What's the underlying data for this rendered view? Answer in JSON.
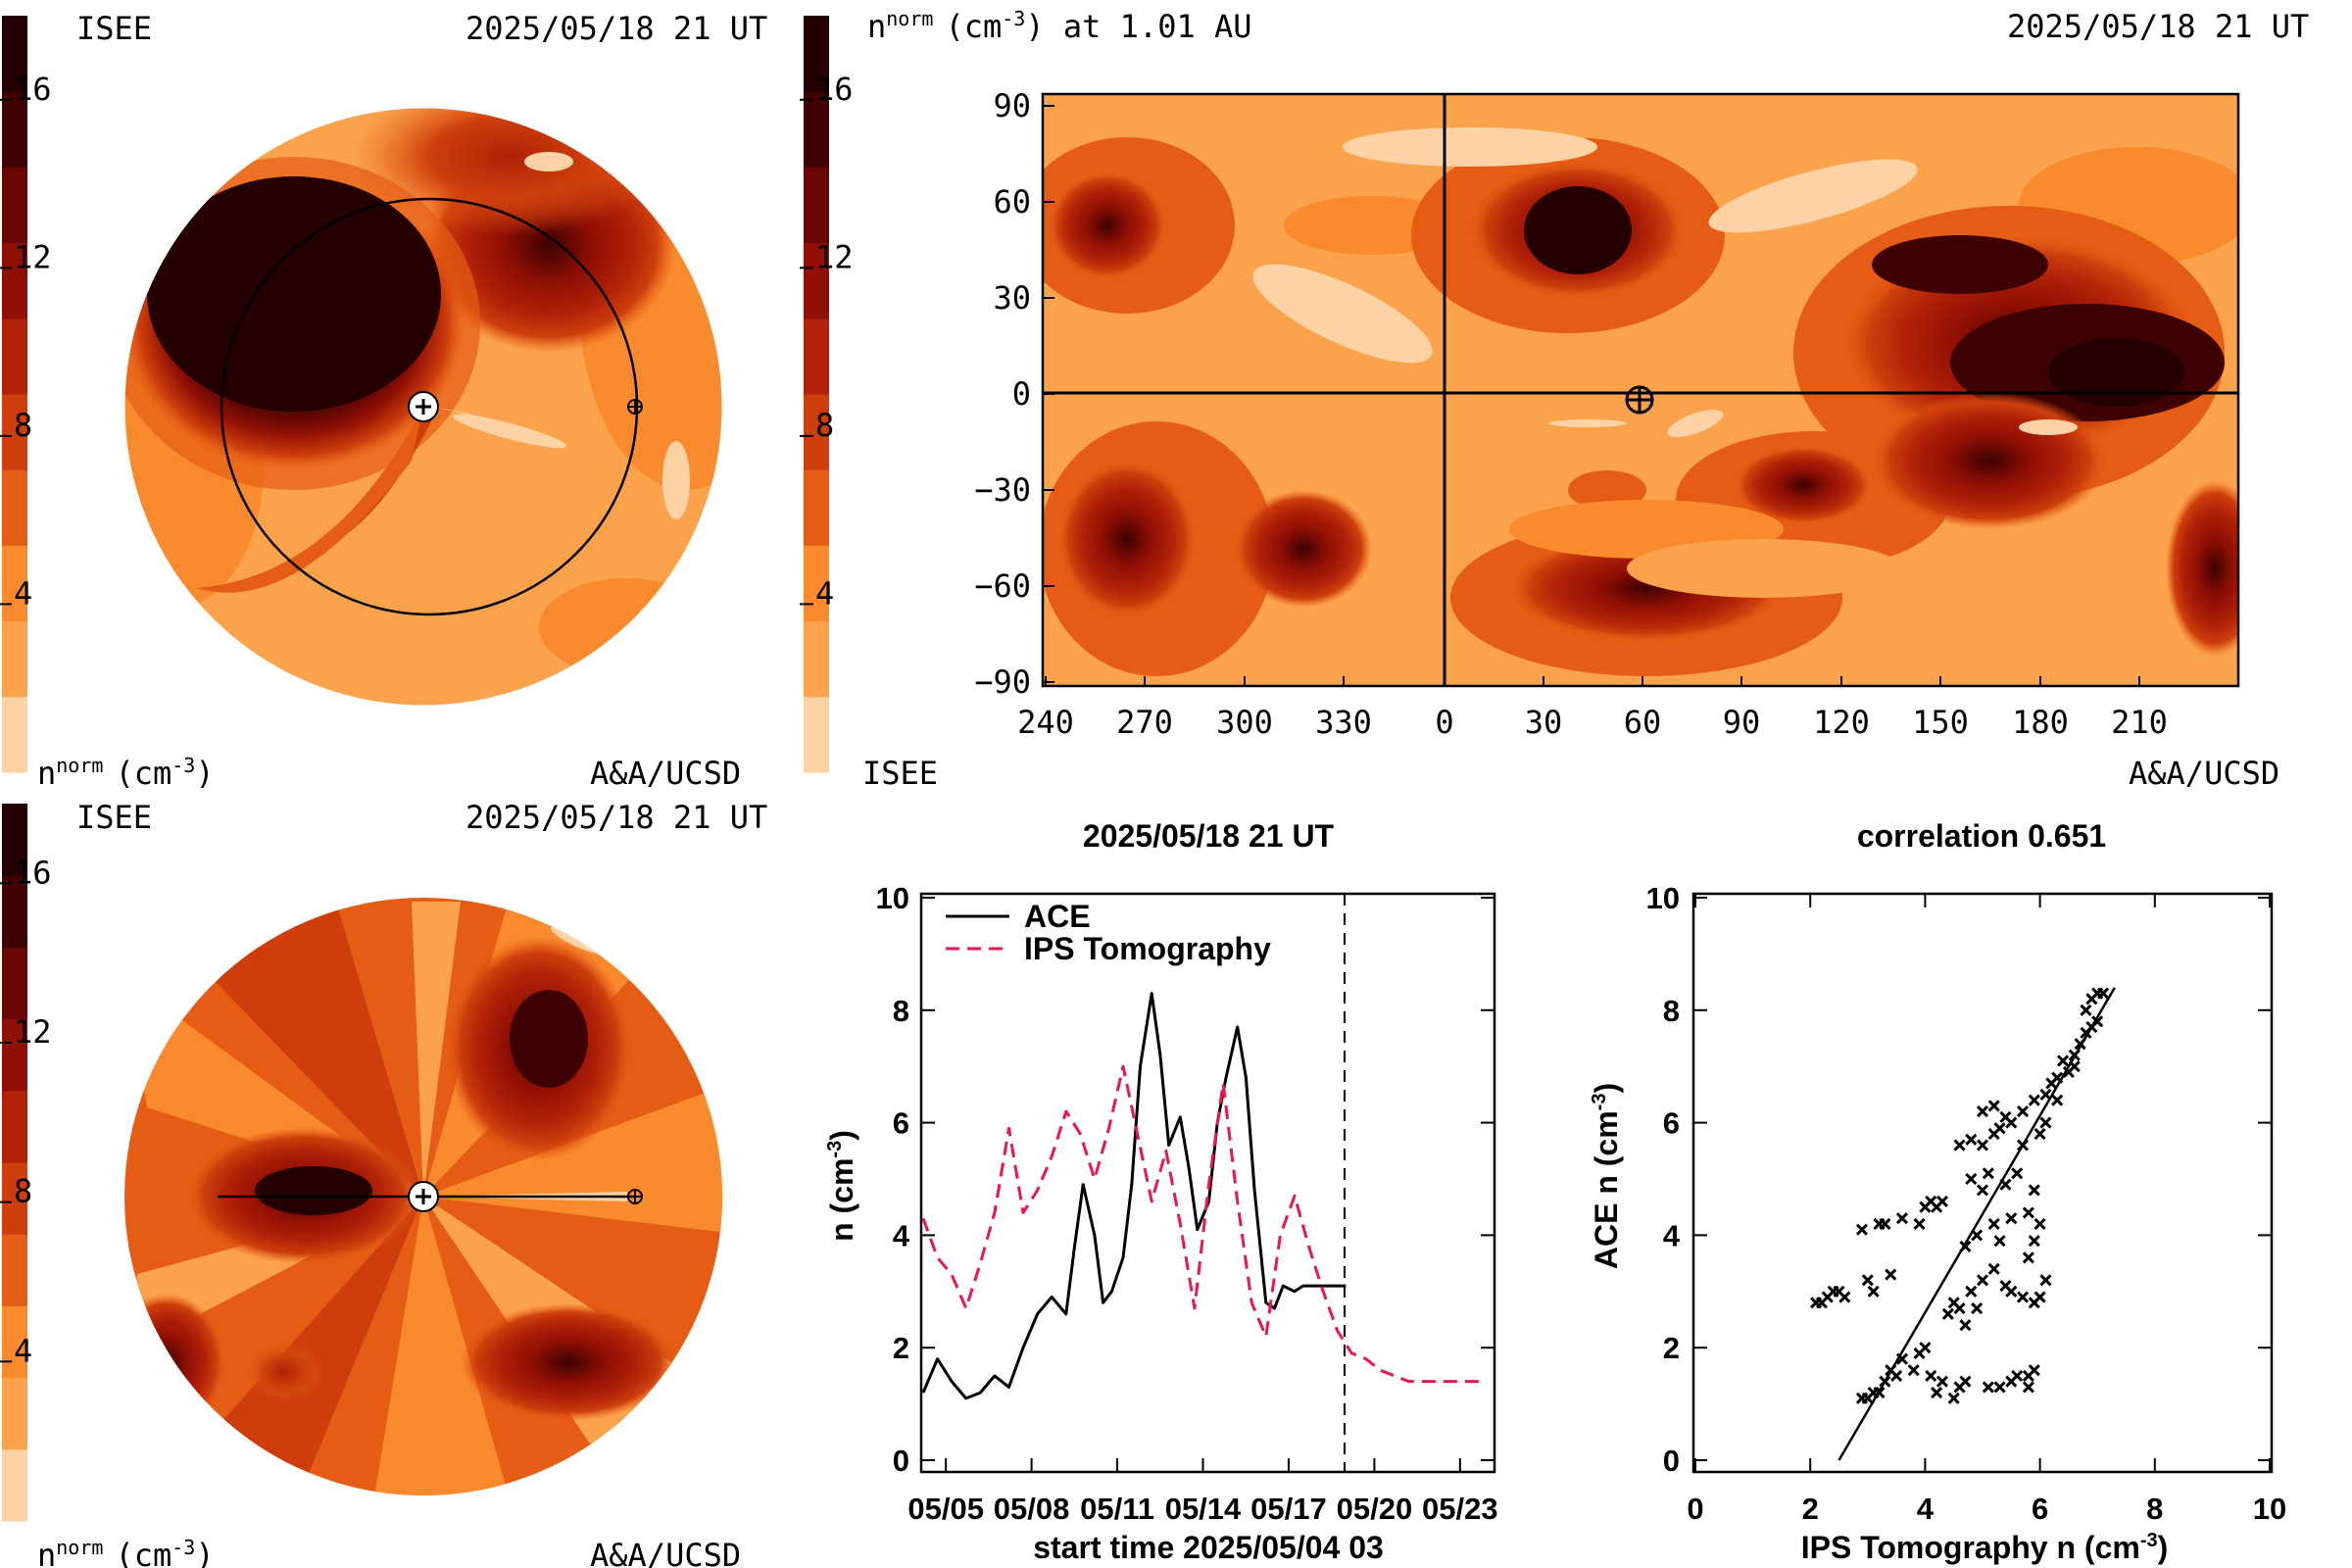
{
  "timestamp": "2025/05/18 21 UT",
  "colorbar": {
    "ticks": [
      "16",
      "12",
      "8",
      "4"
    ],
    "colors": [
      "#fdd3a5",
      "#fba24d",
      "#f98a2d",
      "#e55c14",
      "#cd3e0c",
      "#b02108",
      "#8f0f04",
      "#6a0603",
      "#3d0201",
      "#240000"
    ]
  },
  "panel_tl": {
    "source_left": "ISEE",
    "timestamp": "2025/05/18 21 UT",
    "unit_label_n": "n",
    "unit_label_sup": "norm",
    "unit_label_rest": "(cm",
    "unit_label_exp": "-3",
    "unit_label_close": ")",
    "credit": "A&A/UCSD"
  },
  "panel_tr": {
    "title_n": "n",
    "title_sup": "norm",
    "title_rest": "(cm",
    "title_exp": "-3",
    "title_tail": ") at 1.01 AU",
    "timestamp": "2025/05/18 21 UT",
    "source_left": "ISEE",
    "credit": "A&A/UCSD",
    "x_ticks": [
      "240",
      "270",
      "300",
      "330",
      "0",
      "30",
      "60",
      "90",
      "120",
      "150",
      "180",
      "210"
    ],
    "y_ticks": [
      "90",
      "60",
      "30",
      "0",
      "−30",
      "−60",
      "−90"
    ]
  },
  "panel_bl": {
    "source_left": "ISEE",
    "timestamp": "2025/05/18 21 UT",
    "unit_label_n": "n",
    "unit_label_sup": "norm",
    "unit_label_rest": "(cm",
    "unit_label_exp": "-3",
    "unit_label_close": ")",
    "credit": "A&A/UCSD"
  },
  "chart_data": [
    {
      "type": "line",
      "title": "2025/05/18 21 UT",
      "xlabel": "start time 2025/05/04 03",
      "ylabel": "n (cm",
      "ylabel_exp": "-3",
      "ylabel_close": ")",
      "ylim": [
        0,
        10
      ],
      "x_ticks": [
        "05/05",
        "05/08",
        "05/11",
        "05/14",
        "05/17",
        "05/20",
        "05/23"
      ],
      "y_ticks": [
        "0",
        "2",
        "4",
        "6",
        "8",
        "10"
      ],
      "current_time_day": 14.75,
      "series": [
        {
          "name": "ACE",
          "color": "#000000",
          "dash": "solid",
          "x": [
            0,
            0.5,
            1,
            1.5,
            2,
            2.5,
            3,
            3.5,
            4,
            4.5,
            5,
            5.3,
            5.6,
            6,
            6.3,
            6.6,
            7,
            7.3,
            7.6,
            8,
            8.3,
            8.6,
            9,
            9.3,
            9.6,
            10,
            10.3,
            10.6,
            11,
            11.3,
            11.6,
            12,
            12.3,
            12.6,
            13,
            13.3,
            13.6,
            14,
            14.3,
            14.6,
            14.8
          ],
          "y": [
            1.2,
            1.8,
            1.4,
            1.1,
            1.2,
            1.5,
            1.3,
            2.0,
            2.6,
            2.9,
            2.6,
            3.8,
            4.9,
            4.0,
            2.8,
            3.0,
            3.6,
            4.9,
            7.0,
            8.3,
            7.2,
            5.6,
            6.1,
            5.2,
            4.1,
            4.6,
            6.0,
            6.8,
            7.7,
            6.8,
            4.8,
            2.8,
            2.7,
            3.1,
            3.0,
            3.1,
            3.1,
            3.1,
            3.1,
            3.1,
            3.1
          ]
        },
        {
          "name": "IPS Tomography",
          "color": "#e8184f",
          "dash": "dashed",
          "x": [
            0,
            0.5,
            1,
            1.5,
            2,
            2.5,
            3,
            3.5,
            4,
            4.5,
            5,
            5.5,
            6,
            6.5,
            7,
            7.5,
            8,
            8.5,
            9,
            9.5,
            10,
            10.5,
            11,
            11.5,
            12,
            12.5,
            13,
            13.5,
            14,
            14.5,
            15,
            15.5,
            16,
            16.5,
            17,
            17.5,
            18,
            18.5,
            19,
            19.5
          ],
          "y": [
            4.3,
            3.6,
            3.3,
            2.7,
            3.5,
            4.4,
            5.9,
            4.4,
            4.8,
            5.4,
            6.2,
            5.8,
            5.0,
            5.9,
            7.0,
            5.8,
            4.6,
            5.5,
            4.2,
            2.7,
            4.9,
            6.7,
            4.6,
            2.8,
            2.2,
            4.0,
            4.7,
            3.8,
            3.0,
            2.3,
            1.9,
            1.8,
            1.6,
            1.5,
            1.4,
            1.4,
            1.4,
            1.4,
            1.4,
            1.4
          ]
        }
      ]
    },
    {
      "type": "scatter",
      "title": "correlation 0.651",
      "xlabel": "IPS Tomography n (cm",
      "xlabel_exp": "-3",
      "xlabel_close": ")",
      "ylabel": "ACE n (cm",
      "ylabel_exp": "-3",
      "ylabel_close": ")",
      "xlim": [
        0,
        10
      ],
      "ylim": [
        0,
        10
      ],
      "x_ticks": [
        "0",
        "2",
        "4",
        "6",
        "8",
        "10"
      ],
      "y_ticks": [
        "0",
        "2",
        "4",
        "6",
        "8",
        "10"
      ],
      "fit_line": {
        "x": [
          2.5,
          7.3
        ],
        "y": [
          0.0,
          8.4
        ]
      },
      "points": [
        [
          2.1,
          2.8
        ],
        [
          2.2,
          2.8
        ],
        [
          2.3,
          2.9
        ],
        [
          2.4,
          3.0
        ],
        [
          2.5,
          3.0
        ],
        [
          2.6,
          2.9
        ],
        [
          3.0,
          3.2
        ],
        [
          3.1,
          3.0
        ],
        [
          2.9,
          4.1
        ],
        [
          3.2,
          4.2
        ],
        [
          3.3,
          4.2
        ],
        [
          3.6,
          4.3
        ],
        [
          4.0,
          4.5
        ],
        [
          4.1,
          4.6
        ],
        [
          4.2,
          4.5
        ],
        [
          3.4,
          3.3
        ],
        [
          2.9,
          1.1
        ],
        [
          3.0,
          1.1
        ],
        [
          3.1,
          1.2
        ],
        [
          3.2,
          1.2
        ],
        [
          3.3,
          1.4
        ],
        [
          3.4,
          1.6
        ],
        [
          3.5,
          1.5
        ],
        [
          3.6,
          1.8
        ],
        [
          3.8,
          1.6
        ],
        [
          3.9,
          1.9
        ],
        [
          4.1,
          1.5
        ],
        [
          4.2,
          1.2
        ],
        [
          4.3,
          1.4
        ],
        [
          4.5,
          1.1
        ],
        [
          4.6,
          1.3
        ],
        [
          4.7,
          1.4
        ],
        [
          5.1,
          1.3
        ],
        [
          5.3,
          1.3
        ],
        [
          5.5,
          1.4
        ],
        [
          5.6,
          1.5
        ],
        [
          5.8,
          1.3
        ],
        [
          5.8,
          1.5
        ],
        [
          5.9,
          1.6
        ],
        [
          4.0,
          2.0
        ],
        [
          4.4,
          2.6
        ],
        [
          4.5,
          2.8
        ],
        [
          4.6,
          2.7
        ],
        [
          4.7,
          2.4
        ],
        [
          4.8,
          3.0
        ],
        [
          4.9,
          2.7
        ],
        [
          5.0,
          3.2
        ],
        [
          5.2,
          3.4
        ],
        [
          5.4,
          3.1
        ],
        [
          5.5,
          3.0
        ],
        [
          5.7,
          2.9
        ],
        [
          5.9,
          2.8
        ],
        [
          6.0,
          2.9
        ],
        [
          6.1,
          3.2
        ],
        [
          5.8,
          3.6
        ],
        [
          5.9,
          3.9
        ],
        [
          5.3,
          3.9
        ],
        [
          5.2,
          4.2
        ],
        [
          5.5,
          4.3
        ],
        [
          5.8,
          4.4
        ],
        [
          6.0,
          4.2
        ],
        [
          4.7,
          3.8
        ],
        [
          4.9,
          4.0
        ],
        [
          5.0,
          4.8
        ],
        [
          4.8,
          5.0
        ],
        [
          5.1,
          5.1
        ],
        [
          5.4,
          4.9
        ],
        [
          5.6,
          5.1
        ],
        [
          5.9,
          4.8
        ],
        [
          4.6,
          5.6
        ],
        [
          4.8,
          5.7
        ],
        [
          5.0,
          5.6
        ],
        [
          5.2,
          5.8
        ],
        [
          5.3,
          5.9
        ],
        [
          5.5,
          6.0
        ],
        [
          5.0,
          6.2
        ],
        [
          5.2,
          6.3
        ],
        [
          5.4,
          6.1
        ],
        [
          5.7,
          6.2
        ],
        [
          5.9,
          6.4
        ],
        [
          6.1,
          6.5
        ],
        [
          6.2,
          6.7
        ],
        [
          6.3,
          6.8
        ],
        [
          6.5,
          6.9
        ],
        [
          6.4,
          7.1
        ],
        [
          6.6,
          7.2
        ],
        [
          6.7,
          7.4
        ],
        [
          6.8,
          7.6
        ],
        [
          6.9,
          7.7
        ],
        [
          7.0,
          7.8
        ],
        [
          6.8,
          8.0
        ],
        [
          6.9,
          8.2
        ],
        [
          7.0,
          8.3
        ],
        [
          7.1,
          8.3
        ],
        [
          6.6,
          7.0
        ],
        [
          6.3,
          6.4
        ],
        [
          6.1,
          6.0
        ],
        [
          6.0,
          5.8
        ],
        [
          5.7,
          5.6
        ],
        [
          4.3,
          4.6
        ],
        [
          3.9,
          4.2
        ]
      ]
    }
  ]
}
